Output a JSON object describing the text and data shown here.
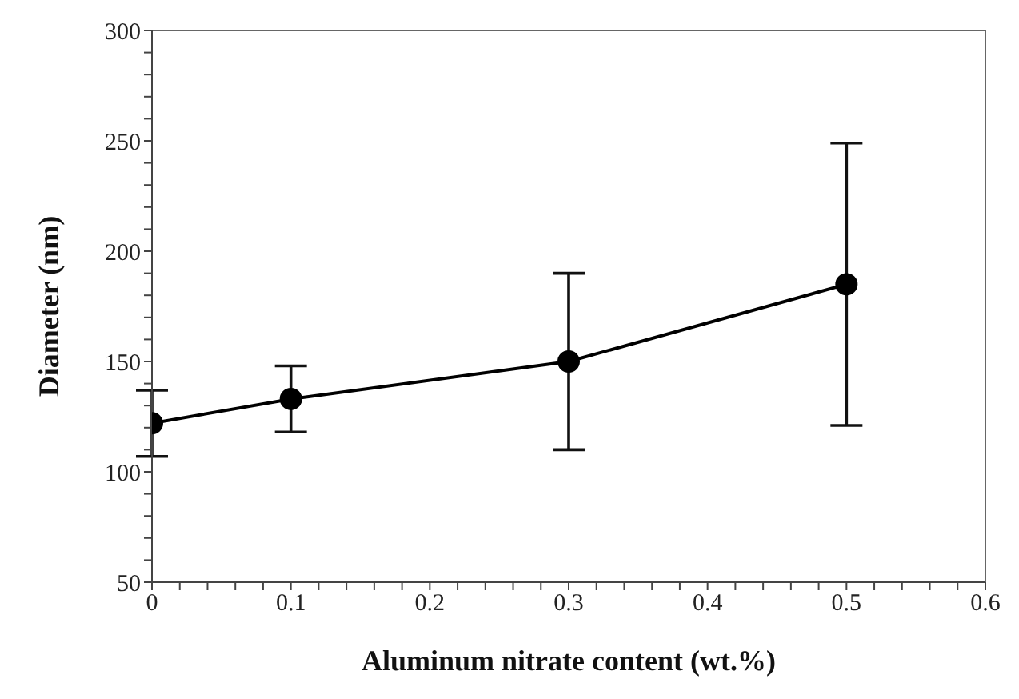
{
  "chart_data": {
    "type": "line",
    "xlabel": "Aluminum nitrate content (wt.%)",
    "ylabel": "Diameter (nm)",
    "x": [
      0,
      0.1,
      0.3,
      0.5
    ],
    "series": [
      {
        "color": "#000000",
        "values": [
          122,
          133,
          150,
          185
        ],
        "errors": [
          15,
          15,
          40,
          64
        ]
      }
    ],
    "xlim": [
      0,
      0.6
    ],
    "xticks": [
      0,
      {
        "value": 0.02,
        "label": null
      },
      {
        "value": 0.04,
        "label": null
      },
      {
        "value": 0.06,
        "label": null
      },
      {
        "value": 0.08,
        "label": null
      },
      0.1,
      {
        "value": 0.12,
        "label": null
      },
      {
        "value": 0.14,
        "label": null
      },
      {
        "value": 0.16,
        "label": null
      },
      {
        "value": 0.18,
        "label": null
      },
      0.2,
      {
        "value": 0.22,
        "label": null
      },
      {
        "value": 0.24,
        "label": null
      },
      {
        "value": 0.26,
        "label": null
      },
      {
        "value": 0.28,
        "label": null
      },
      0.3,
      {
        "value": 0.32,
        "label": null
      },
      {
        "value": 0.34,
        "label": null
      },
      {
        "value": 0.36,
        "label": null
      },
      {
        "value": 0.38,
        "label": null
      },
      0.4,
      {
        "value": 0.42,
        "label": null
      },
      {
        "value": 0.44,
        "label": null
      },
      {
        "value": 0.46,
        "label": null
      },
      {
        "value": 0.48,
        "label": null
      },
      0.5,
      {
        "value": 0.52,
        "label": null
      },
      {
        "value": 0.54,
        "label": null
      },
      {
        "value": 0.56,
        "label": null
      },
      {
        "value": 0.58,
        "label": null
      },
      0.6
    ],
    "ylim": [
      50,
      300
    ],
    "yticks": [
      50,
      {
        "value": 60,
        "label": null
      },
      {
        "value": 70,
        "label": null
      },
      {
        "value": 80,
        "label": null
      },
      {
        "value": 90,
        "label": null
      },
      100,
      {
        "value": 110,
        "label": null
      },
      {
        "value": 120,
        "label": null
      },
      {
        "value": 130,
        "label": null
      },
      {
        "value": 140,
        "label": null
      },
      150,
      {
        "value": 160,
        "label": null
      },
      {
        "value": 170,
        "label": null
      },
      {
        "value": 180,
        "label": null
      },
      {
        "value": 190,
        "label": null
      },
      200,
      {
        "value": 210,
        "label": null
      },
      {
        "value": 220,
        "label": null
      },
      {
        "value": 230,
        "label": null
      },
      {
        "value": 240,
        "label": null
      },
      250,
      {
        "value": 260,
        "label": null
      },
      {
        "value": 270,
        "label": null
      },
      {
        "value": 280,
        "label": null
      },
      {
        "value": 290,
        "label": null
      },
      300
    ],
    "grid": false,
    "legend": false,
    "marker": "circle",
    "line_style": "solid"
  }
}
